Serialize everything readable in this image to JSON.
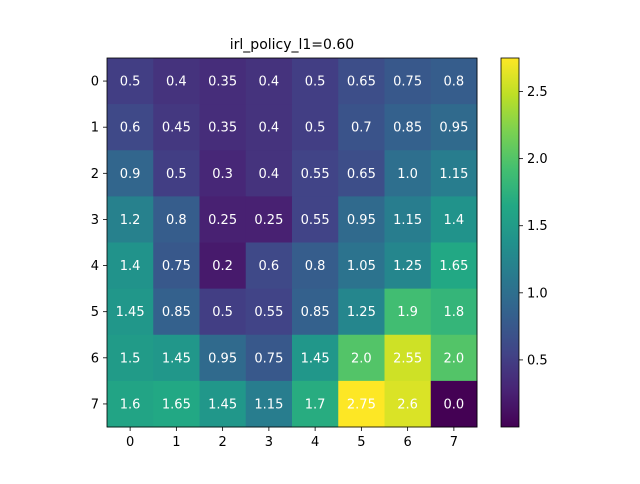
{
  "chart_data": {
    "type": "heatmap",
    "title": "irl_policy_l1=0.60",
    "xlabel": "",
    "ylabel": "",
    "x_ticks": [
      "0",
      "1",
      "2",
      "3",
      "4",
      "5",
      "6",
      "7"
    ],
    "y_ticks": [
      "0",
      "1",
      "2",
      "3",
      "4",
      "5",
      "6",
      "7"
    ],
    "values": [
      [
        0.5,
        0.4,
        0.35,
        0.4,
        0.5,
        0.65,
        0.75,
        0.8
      ],
      [
        0.6,
        0.45,
        0.35,
        0.4,
        0.5,
        0.7,
        0.85,
        0.95
      ],
      [
        0.9,
        0.5,
        0.3,
        0.4,
        0.55,
        0.65,
        1.0,
        1.15
      ],
      [
        1.2,
        0.8,
        0.25,
        0.25,
        0.55,
        0.95,
        1.15,
        1.4
      ],
      [
        1.4,
        0.75,
        0.2,
        0.6,
        0.8,
        1.05,
        1.25,
        1.65
      ],
      [
        1.45,
        0.85,
        0.5,
        0.55,
        0.85,
        1.25,
        1.9,
        1.8
      ],
      [
        1.5,
        1.45,
        0.95,
        0.75,
        1.45,
        2.0,
        2.55,
        2.0
      ],
      [
        1.6,
        1.65,
        1.45,
        1.15,
        1.7,
        2.75,
        2.6,
        0.0
      ]
    ],
    "cell_labels": [
      [
        "0.5",
        "0.4",
        "0.35",
        "0.4",
        "0.5",
        "0.65",
        "0.75",
        "0.8"
      ],
      [
        "0.6",
        "0.45",
        "0.35",
        "0.4",
        "0.5",
        "0.7",
        "0.85",
        "0.95"
      ],
      [
        "0.9",
        "0.5",
        "0.3",
        "0.4",
        "0.55",
        "0.65",
        "1.0",
        "1.15"
      ],
      [
        "1.2",
        "0.8",
        "0.25",
        "0.25",
        "0.55",
        "0.95",
        "1.15",
        "1.4"
      ],
      [
        "1.4",
        "0.75",
        "0.2",
        "0.6",
        "0.8",
        "1.05",
        "1.25",
        "1.65"
      ],
      [
        "1.45",
        "0.85",
        "0.5",
        "0.55",
        "0.85",
        "1.25",
        "1.9",
        "1.8"
      ],
      [
        "1.5",
        "1.45",
        "0.95",
        "0.75",
        "1.45",
        "2.0",
        "2.55",
        "2.0"
      ],
      [
        "1.6",
        "1.65",
        "1.45",
        "1.15",
        "1.7",
        "2.75",
        "2.6",
        "0.0"
      ]
    ],
    "colormap": "viridis",
    "vmin": 0.0,
    "vmax": 2.75,
    "colorbar_ticks": [
      0.5,
      1.0,
      1.5,
      2.0,
      2.5
    ],
    "colorbar_tick_labels": [
      "0.5",
      "1.0",
      "1.5",
      "2.0",
      "2.5"
    ],
    "cell_text_color": "#ffffff",
    "grid": false
  }
}
